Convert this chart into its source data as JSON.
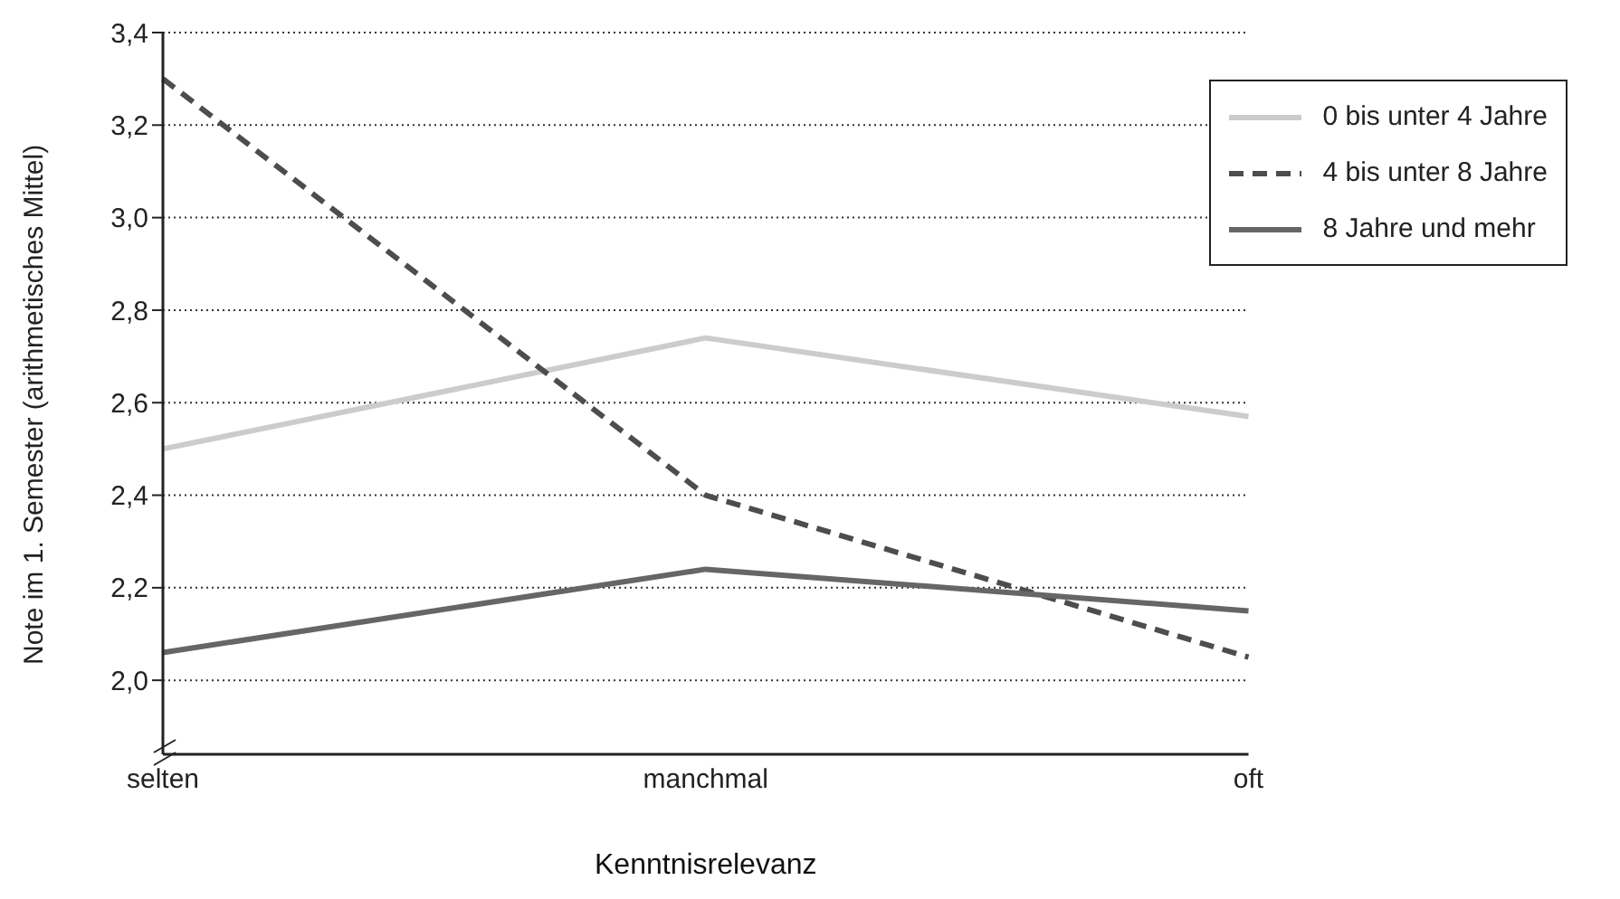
{
  "chart_data": {
    "type": "line",
    "xlabel": "Kenntnisrelevanz",
    "ylabel": "Note im 1. Semester (arithmetisches Mittel)",
    "categories": [
      "selten",
      "manchmal",
      "oft"
    ],
    "series": [
      {
        "name": "0 bis unter 4 Jahre",
        "color": "#cccccc",
        "values": [
          2.5,
          2.74,
          2.57
        ],
        "line_style": "solid"
      },
      {
        "name": "4 bis unter 8 Jahre",
        "color": "#4d4d4d",
        "values": [
          3.3,
          2.4,
          2.05
        ],
        "line_style": "dashed"
      },
      {
        "name": "8 Jahre und mehr",
        "color": "#666666",
        "values": [
          2.06,
          2.24,
          2.15
        ],
        "line_style": "solid"
      }
    ],
    "ylim": [
      1.84,
      3.4
    ],
    "yticks": [
      {
        "value": 2.0,
        "label": "2,0"
      },
      {
        "value": 2.2,
        "label": "2,2"
      },
      {
        "value": 2.4,
        "label": "2,4"
      },
      {
        "value": 2.6,
        "label": "2,6"
      },
      {
        "value": 2.8,
        "label": "2,8"
      },
      {
        "value": 3.0,
        "label": "3,0"
      },
      {
        "value": 3.2,
        "label": "3,2"
      },
      {
        "value": 3.4,
        "label": "3,4"
      }
    ],
    "grid": "y",
    "legend": "top right",
    "marker": "none"
  }
}
